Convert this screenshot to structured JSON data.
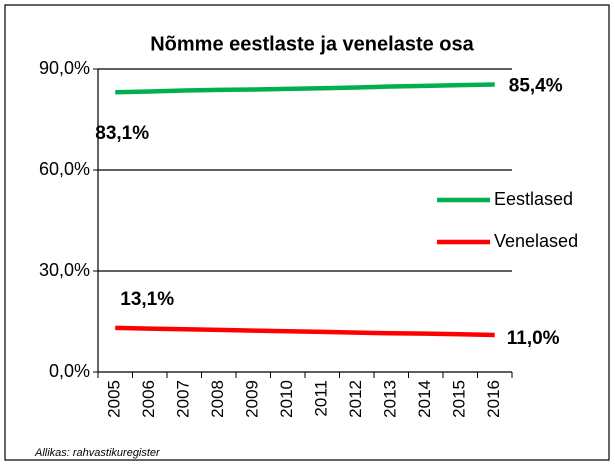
{
  "chart_data": {
    "type": "line",
    "title": "Nõmme eestlaste ja venelaste osa",
    "categories": [
      "2005",
      "2006",
      "2007",
      "2008",
      "2009",
      "2010",
      "2011",
      "2012",
      "2013",
      "2014",
      "2015",
      "2016"
    ],
    "series": [
      {
        "name": "Eestlased",
        "color": "#00b050",
        "values": [
          83.1,
          83.3,
          83.6,
          83.8,
          83.9,
          84.1,
          84.3,
          84.5,
          84.8,
          85.0,
          85.2,
          85.4
        ],
        "value_labels": [
          "83,1%",
          null,
          null,
          null,
          null,
          null,
          null,
          null,
          null,
          null,
          null,
          "85,4%"
        ]
      },
      {
        "name": "Venelased",
        "color": "#ff0000",
        "values": [
          13.1,
          12.9,
          12.7,
          12.5,
          12.3,
          12.1,
          11.9,
          11.7,
          11.5,
          11.4,
          11.2,
          11.0
        ],
        "value_labels": [
          "13,1%",
          null,
          null,
          null,
          null,
          null,
          null,
          null,
          null,
          null,
          null,
          "11,0%"
        ]
      }
    ],
    "ylim": [
      0,
      90
    ],
    "yticks": [
      {
        "value": 0,
        "label": "0,0%"
      },
      {
        "value": 30,
        "label": "30,0%"
      },
      {
        "value": 60,
        "label": "60,0%"
      },
      {
        "value": 90,
        "label": "90,0%"
      }
    ],
    "grid": true,
    "legend": "right",
    "source": "Allikas: rahvastikuregister"
  }
}
